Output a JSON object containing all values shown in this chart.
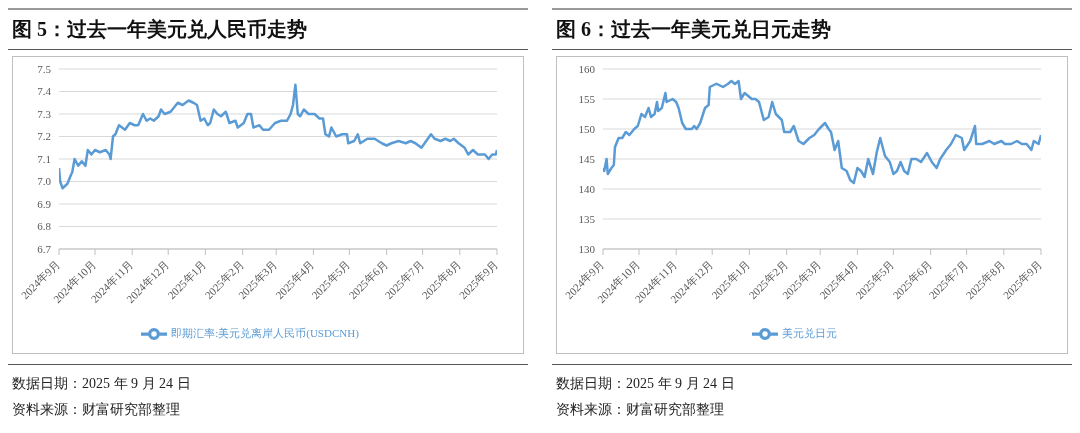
{
  "chart_data": [
    {
      "type": "line",
      "title": "图 5：过去一年美元兑人民币走势",
      "annotations": [
        "数据日期：2025 年 9 月 24 日",
        "资料来源：财富研究部整理"
      ],
      "legend": "bottom",
      "grid": "y",
      "marker": "none",
      "line_style": "solid",
      "ylim": [
        6.7,
        7.5
      ],
      "yticks": [
        {
          "value": 6.7,
          "label": "6.7"
        },
        {
          "value": 6.8,
          "label": "6.8"
        },
        {
          "value": 6.9,
          "label": "6.9"
        },
        {
          "value": 7.0,
          "label": "7.0"
        },
        {
          "value": 7.1,
          "label": "7.1"
        },
        {
          "value": 7.2,
          "label": "7.2"
        },
        {
          "value": 7.3,
          "label": "7.3"
        },
        {
          "value": 7.4,
          "label": "7.4"
        },
        {
          "value": 7.5,
          "label": "7.5"
        }
      ],
      "xlim": [
        "2024-09-24",
        "2025-09-24"
      ],
      "xticks": [
        {
          "value": "2024-09-24",
          "label": "2024年9月"
        },
        {
          "value": "2024-10-24",
          "label": "2024年10月"
        },
        {
          "value": "2024-11-24",
          "label": "2024年11月"
        },
        {
          "value": "2024-12-24",
          "label": "2024年12月"
        },
        {
          "value": "2025-01-24",
          "label": "2025年1月"
        },
        {
          "value": "2025-02-24",
          "label": "2025年2月"
        },
        {
          "value": "2025-03-24",
          "label": "2025年3月"
        },
        {
          "value": "2025-04-24",
          "label": "2025年4月"
        },
        {
          "value": "2025-05-24",
          "label": "2025年5月"
        },
        {
          "value": "2025-06-24",
          "label": "2025年6月"
        },
        {
          "value": "2025-07-24",
          "label": "2025年7月"
        },
        {
          "value": "2025-08-24",
          "label": "2025年8月"
        },
        {
          "value": "2025-09-24",
          "label": "2025年9月"
        }
      ],
      "x": [
        "2024-09-24",
        "2024-09-25",
        "2024-09-27",
        "2024-10-01",
        "2024-10-04",
        "2024-10-05",
        "2024-10-07",
        "2024-10-10",
        "2024-10-13",
        "2024-10-16",
        "2024-10-18",
        "2024-10-21",
        "2024-10-24",
        "2024-10-28",
        "2024-11-02",
        "2024-11-05",
        "2024-11-06",
        "2024-11-08",
        "2024-11-10",
        "2024-11-13",
        "2024-11-18",
        "2024-11-22",
        "2024-11-26",
        "2024-11-29",
        "2024-12-03",
        "2024-12-06",
        "2024-12-09",
        "2024-12-12",
        "2024-12-16",
        "2024-12-18",
        "2024-12-21",
        "2024-12-26",
        "2025-01-01",
        "2025-01-05",
        "2025-01-10",
        "2025-01-14",
        "2025-01-17",
        "2025-01-20",
        "2025-01-23",
        "2025-01-26",
        "2025-01-28",
        "2025-01-31",
        "2025-02-03",
        "2025-02-06",
        "2025-02-10",
        "2025-02-13",
        "2025-02-18",
        "2025-02-20",
        "2025-02-25",
        "2025-02-28",
        "2025-03-03",
        "2025-03-05",
        "2025-03-10",
        "2025-03-13",
        "2025-03-18",
        "2025-03-23",
        "2025-03-28",
        "2025-04-02",
        "2025-04-05",
        "2025-04-07",
        "2025-04-09",
        "2025-04-11",
        "2025-04-13",
        "2025-04-16",
        "2025-04-20",
        "2025-04-25",
        "2025-04-29",
        "2025-05-02",
        "2025-05-04",
        "2025-05-07",
        "2025-05-09",
        "2025-05-13",
        "2025-05-18",
        "2025-05-22",
        "2025-05-23",
        "2025-05-28",
        "2025-05-31",
        "2025-06-02",
        "2025-06-08",
        "2025-06-14",
        "2025-06-20",
        "2025-06-24",
        "2025-06-28",
        "2025-07-04",
        "2025-07-10",
        "2025-07-14",
        "2025-07-18",
        "2025-07-23",
        "2025-07-27",
        "2025-07-31",
        "2025-08-03",
        "2025-08-08",
        "2025-08-12",
        "2025-08-16",
        "2025-08-19",
        "2025-08-23",
        "2025-08-28",
        "2025-08-31",
        "2025-09-04",
        "2025-09-08",
        "2025-09-14",
        "2025-09-17",
        "2025-09-20",
        "2025-09-23",
        "2025-09-24"
      ],
      "series": [
        {
          "name": "即期汇率:美元兑离岸人民币(USDCNH)",
          "color": "#5b9bd5",
          "values": [
            7.06,
            7.0,
            6.97,
            6.99,
            7.03,
            7.04,
            7.1,
            7.07,
            7.09,
            7.07,
            7.14,
            7.12,
            7.14,
            7.13,
            7.14,
            7.12,
            7.1,
            7.2,
            7.21,
            7.25,
            7.23,
            7.26,
            7.25,
            7.25,
            7.3,
            7.27,
            7.28,
            7.27,
            7.29,
            7.32,
            7.3,
            7.31,
            7.35,
            7.34,
            7.36,
            7.35,
            7.34,
            7.27,
            7.28,
            7.25,
            7.26,
            7.32,
            7.3,
            7.29,
            7.31,
            7.26,
            7.27,
            7.24,
            7.26,
            7.3,
            7.3,
            7.24,
            7.25,
            7.23,
            7.23,
            7.26,
            7.27,
            7.27,
            7.3,
            7.34,
            7.43,
            7.3,
            7.29,
            7.32,
            7.3,
            7.3,
            7.28,
            7.28,
            7.21,
            7.2,
            7.24,
            7.2,
            7.21,
            7.21,
            7.17,
            7.18,
            7.21,
            7.17,
            7.19,
            7.19,
            7.17,
            7.16,
            7.17,
            7.18,
            7.17,
            7.18,
            7.17,
            7.15,
            7.18,
            7.21,
            7.19,
            7.18,
            7.19,
            7.18,
            7.19,
            7.17,
            7.15,
            7.12,
            7.14,
            7.12,
            7.12,
            7.1,
            7.12,
            7.12,
            7.14
          ]
        }
      ]
    },
    {
      "type": "line",
      "title": "图 6：过去一年美元兑日元走势",
      "annotations": [
        "数据日期：2025 年 9 月 24 日",
        "资料来源：财富研究部整理"
      ],
      "legend": "bottom",
      "grid": "y",
      "marker": "none",
      "line_style": "solid",
      "ylim": [
        130,
        160
      ],
      "yticks": [
        130,
        135,
        140,
        145,
        150,
        155,
        160
      ],
      "xlim": [
        "2024-09-24",
        "2025-09-24"
      ],
      "xticks": [
        {
          "value": "2024-09-24",
          "label": "2024年9月"
        },
        {
          "value": "2024-10-24",
          "label": "2024年10月"
        },
        {
          "value": "2024-11-24",
          "label": "2024年11月"
        },
        {
          "value": "2024-12-24",
          "label": "2024年12月"
        },
        {
          "value": "2025-01-24",
          "label": "2025年1月"
        },
        {
          "value": "2025-02-24",
          "label": "2025年2月"
        },
        {
          "value": "2025-03-24",
          "label": "2025年3月"
        },
        {
          "value": "2025-04-24",
          "label": "2025年4月"
        },
        {
          "value": "2025-05-24",
          "label": "2025年5月"
        },
        {
          "value": "2025-06-24",
          "label": "2025年6月"
        },
        {
          "value": "2025-07-24",
          "label": "2025年7月"
        },
        {
          "value": "2025-08-24",
          "label": "2025年8月"
        },
        {
          "value": "2025-09-24",
          "label": "2025年9月"
        }
      ],
      "x": [
        "2024-09-24",
        "2024-09-25",
        "2024-09-27",
        "2024-09-28",
        "2024-10-01",
        "2024-10-03",
        "2024-10-04",
        "2024-10-07",
        "2024-10-10",
        "2024-10-13",
        "2024-10-16",
        "2024-10-20",
        "2024-10-23",
        "2024-10-26",
        "2024-10-29",
        "2024-11-01",
        "2024-11-03",
        "2024-11-06",
        "2024-11-08",
        "2024-11-09",
        "2024-11-12",
        "2024-11-15",
        "2024-11-16",
        "2024-11-21",
        "2024-11-24",
        "2024-11-26",
        "2024-11-29",
        "2024-12-02",
        "2024-12-07",
        "2024-12-09",
        "2024-12-11",
        "2024-12-14",
        "2024-12-18",
        "2024-12-21",
        "2024-12-22",
        "2024-12-27",
        "2024-12-28",
        "2025-01-02",
        "2025-01-06",
        "2025-01-09",
        "2025-01-12",
        "2025-01-15",
        "2025-01-17",
        "2025-01-20",
        "2025-01-23",
        "2025-01-26",
        "2025-01-29",
        "2025-02-01",
        "2025-02-05",
        "2025-02-09",
        "2025-02-12",
        "2025-02-15",
        "2025-02-20",
        "2025-02-22",
        "2025-02-27",
        "2025-03-02",
        "2025-03-06",
        "2025-03-10",
        "2025-03-15",
        "2025-03-19",
        "2025-03-23",
        "2025-03-28",
        "2025-03-31",
        "2025-04-02",
        "2025-04-05",
        "2025-04-08",
        "2025-04-11",
        "2025-04-15",
        "2025-04-18",
        "2025-04-21",
        "2025-04-24",
        "2025-04-27",
        "2025-04-30",
        "2025-05-03",
        "2025-05-07",
        "2025-05-10",
        "2025-05-13",
        "2025-05-17",
        "2025-05-21",
        "2025-05-24",
        "2025-05-27",
        "2025-05-30",
        "2025-06-02",
        "2025-06-05",
        "2025-06-08",
        "2025-06-12",
        "2025-06-16",
        "2025-06-21",
        "2025-06-25",
        "2025-06-29",
        "2025-07-02",
        "2025-07-07",
        "2025-07-11",
        "2025-07-15",
        "2025-07-20",
        "2025-07-22",
        "2025-07-27",
        "2025-07-31",
        "2025-08-01",
        "2025-08-06",
        "2025-08-12",
        "2025-08-16",
        "2025-08-22",
        "2025-08-25",
        "2025-08-30",
        "2025-09-04",
        "2025-09-08",
        "2025-09-12",
        "2025-09-16",
        "2025-09-18",
        "2025-09-22",
        "2025-09-24"
      ],
      "series": [
        {
          "name": "美元兑日元",
          "color": "#5b9bd5",
          "values": [
            143.5,
            143,
            145,
            142.5,
            143.5,
            144,
            147,
            148.5,
            148.5,
            149.5,
            149,
            150,
            150.5,
            152.5,
            152,
            153.5,
            152,
            152.5,
            154.5,
            153,
            153.5,
            156,
            154.5,
            155,
            154.5,
            153.5,
            151,
            150,
            150,
            150.5,
            150,
            151,
            153.5,
            154,
            157,
            157.5,
            157.5,
            157,
            157.5,
            158,
            157.5,
            158,
            155,
            156,
            155.5,
            155,
            155,
            154.5,
            151.5,
            152,
            154.5,
            152.5,
            151.5,
            149.5,
            149.5,
            150.5,
            148,
            147.5,
            148.5,
            149,
            150,
            151,
            150,
            149.5,
            146.5,
            148,
            143.5,
            143,
            141.5,
            141,
            143.5,
            143,
            142,
            145,
            142.5,
            146,
            148.5,
            145.5,
            144.5,
            142.5,
            143,
            144.5,
            143,
            142.5,
            145,
            145,
            144.5,
            146,
            144.5,
            143.5,
            145,
            146.5,
            147.5,
            149,
            148.5,
            146.5,
            148,
            150.5,
            147.5,
            147.5,
            148,
            147.5,
            148,
            147.5,
            147.5,
            148,
            147.5,
            147.5,
            146.5,
            148,
            147.5,
            149
          ]
        }
      ]
    }
  ]
}
